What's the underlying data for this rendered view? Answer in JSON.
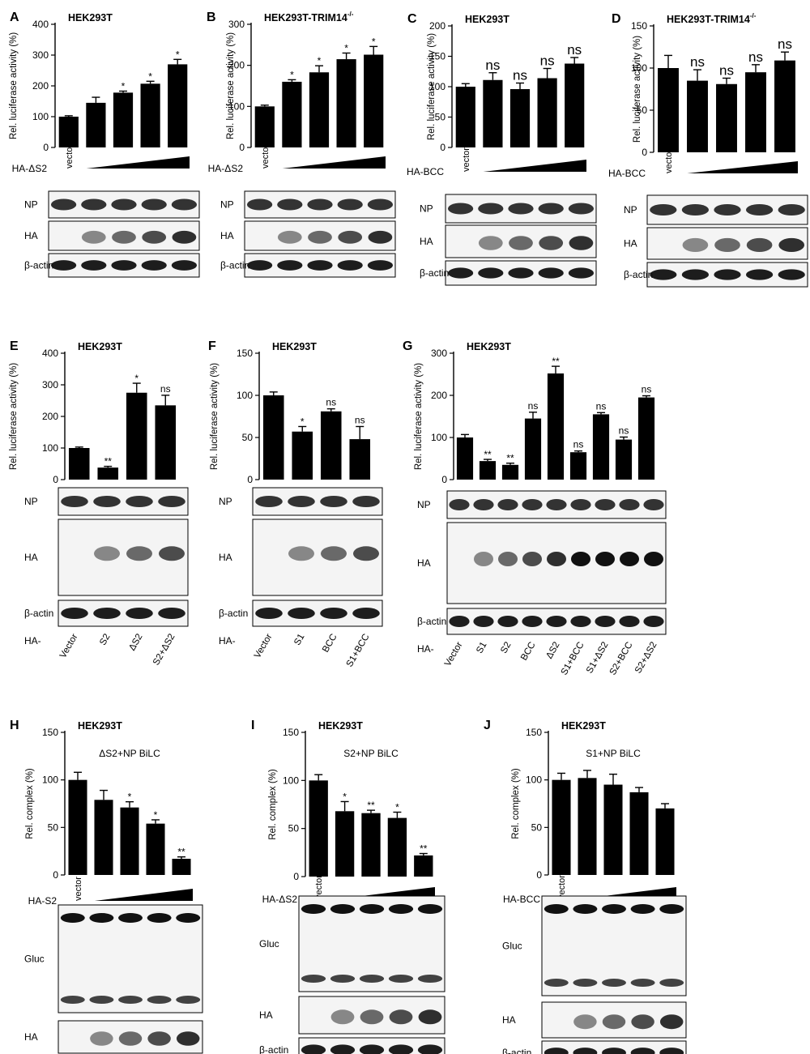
{
  "figure": {
    "panels": [
      {
        "id": "A",
        "cell_line": "HEK293T",
        "sup": "",
        "ylabel": "Rel. luciferase activity (%)",
        "ylim": [
          0,
          400
        ],
        "yticks": [
          0,
          100,
          200,
          300,
          400
        ],
        "chart_data": {
          "type": "bar",
          "categories": [
            "1",
            "2",
            "3",
            "4",
            "5"
          ],
          "values": [
            100,
            145,
            178,
            207,
            270
          ],
          "errors": [
            3,
            18,
            5,
            8,
            16
          ],
          "sig": [
            "",
            "",
            "*",
            "*",
            "*"
          ]
        },
        "gradient": {
          "label": "HA-ΔS2",
          "first": "vector"
        },
        "blots": [
          {
            "label": "NP",
            "arrow": "",
            "extra": ""
          },
          {
            "label": "HA",
            "arrow": "",
            "extra": ""
          },
          {
            "label": "β-actin",
            "arrow": "",
            "extra": ""
          }
        ],
        "bottom_prefix": "",
        "bottom_labels": []
      },
      {
        "id": "B",
        "cell_line": "HEK293T-TRIM14",
        "sup": "-/-",
        "ylabel": "Rel. luciferase activity (%)",
        "ylim": [
          0,
          300
        ],
        "yticks": [
          0,
          100,
          200,
          300
        ],
        "chart_data": {
          "type": "bar",
          "categories": [
            "1",
            "2",
            "3",
            "4",
            "5"
          ],
          "values": [
            100,
            160,
            183,
            215,
            226
          ],
          "errors": [
            3,
            5,
            16,
            15,
            20
          ],
          "sig": [
            "",
            "*",
            "*",
            "*",
            "*"
          ]
        },
        "gradient": {
          "label": "HA-ΔS2",
          "first": "vector"
        },
        "blots": [
          {
            "label": "NP",
            "arrow": "",
            "extra": ""
          },
          {
            "label": "HA",
            "arrow": "",
            "extra": ""
          },
          {
            "label": "β-actin",
            "arrow": "",
            "extra": ""
          }
        ],
        "bottom_prefix": "",
        "bottom_labels": []
      },
      {
        "id": "C",
        "cell_line": "HEK293T",
        "sup": "",
        "ylabel": "Rel. luciferase activity (%)",
        "ylim": [
          0,
          200
        ],
        "yticks": [
          0,
          50,
          100,
          150,
          200
        ],
        "chart_data": {
          "type": "bar",
          "categories": [
            "1",
            "2",
            "3",
            "4",
            "5"
          ],
          "values": [
            100,
            111,
            96,
            114,
            138
          ],
          "errors": [
            5,
            12,
            10,
            16,
            10
          ],
          "sig": [
            "",
            "ns",
            "ns",
            "ns",
            "ns"
          ]
        },
        "gradient": {
          "label": "HA-BCC",
          "first": "vector"
        },
        "blots": [
          {
            "label": "NP",
            "arrow": "",
            "extra": ""
          },
          {
            "label": "HA",
            "arrow": "",
            "extra": ""
          },
          {
            "label": "β-actin",
            "arrow": "",
            "extra": ""
          }
        ],
        "bottom_prefix": "",
        "bottom_labels": []
      },
      {
        "id": "D",
        "cell_line": "HEK293T-TRIM14",
        "sup": "-/-",
        "ylabel": "Rel. luciferase activity (%)",
        "ylim": [
          0,
          150
        ],
        "yticks": [
          0,
          50,
          100,
          150
        ],
        "chart_data": {
          "type": "bar",
          "categories": [
            "1",
            "2",
            "3",
            "4",
            "5"
          ],
          "values": [
            100,
            85,
            81,
            95,
            109
          ],
          "errors": [
            15,
            13,
            7,
            9,
            10
          ],
          "sig": [
            "",
            "ns",
            "ns",
            "ns",
            "ns"
          ]
        },
        "gradient": {
          "label": "HA-BCC",
          "first": "vector"
        },
        "blots": [
          {
            "label": "NP",
            "arrow": "",
            "extra": ""
          },
          {
            "label": "HA",
            "arrow": "",
            "extra": ""
          },
          {
            "label": "β-actin",
            "arrow": "",
            "extra": ""
          }
        ],
        "bottom_prefix": "",
        "bottom_labels": []
      },
      {
        "id": "E",
        "cell_line": "HEK293T",
        "sup": "",
        "ylabel": "Rel. luciferase activity (%)",
        "ylim": [
          0,
          400
        ],
        "yticks": [
          0,
          100,
          200,
          300,
          400
        ],
        "chart_data": {
          "type": "bar",
          "categories": [
            "Vector",
            "S2",
            "ΔS2",
            "S2+ΔS2"
          ],
          "values": [
            100,
            38,
            275,
            235
          ],
          "errors": [
            3,
            4,
            30,
            32
          ],
          "sig": [
            "",
            "**",
            "*",
            "ns"
          ]
        },
        "gradient": null,
        "blots": [
          {
            "label": "NP",
            "arrow": "",
            "extra": ""
          },
          {
            "label": "HA",
            "arrow": "",
            "extra": ""
          },
          {
            "label": "β-actin",
            "arrow": "",
            "extra": ""
          }
        ],
        "bottom_prefix": "HA-",
        "bottom_labels": [
          "Vector",
          "S2",
          "ΔS2",
          "S2+ΔS2"
        ]
      },
      {
        "id": "F",
        "cell_line": "HEK293T",
        "sup": "",
        "ylabel": "Rel. luciferase activity (%)",
        "ylim": [
          0,
          150
        ],
        "yticks": [
          0,
          50,
          100,
          150
        ],
        "chart_data": {
          "type": "bar",
          "categories": [
            "Vector",
            "S1",
            "BCC",
            "S1+BCC"
          ],
          "values": [
            100,
            57,
            81,
            48
          ],
          "errors": [
            4,
            6,
            3,
            15
          ],
          "sig": [
            "",
            "*",
            "ns",
            "ns"
          ]
        },
        "gradient": null,
        "blots": [
          {
            "label": "NP",
            "arrow": "",
            "extra": ""
          },
          {
            "label": "HA",
            "arrow": "",
            "extra": ""
          },
          {
            "label": "β-actin",
            "arrow": "",
            "extra": ""
          }
        ],
        "bottom_prefix": "HA-",
        "bottom_labels": [
          "Vector",
          "S1",
          "BCC",
          "S1+BCC"
        ]
      },
      {
        "id": "G",
        "cell_line": "HEK293T",
        "sup": "",
        "ylabel": "Rel. luciferase activity (%)",
        "ylim": [
          0,
          300
        ],
        "yticks": [
          0,
          100,
          200,
          300
        ],
        "chart_data": {
          "type": "bar",
          "categories": [
            "Vector",
            "S1",
            "S2",
            "BCC",
            "ΔS2",
            "S1+BCC",
            "S1+ΔS2",
            "S2+BCC",
            "S2+ΔS2"
          ],
          "values": [
            100,
            44,
            35,
            145,
            252,
            65,
            155,
            95,
            195
          ],
          "errors": [
            7,
            4,
            4,
            15,
            17,
            3,
            4,
            6,
            4
          ],
          "sig": [
            "",
            "**",
            "**",
            "ns",
            "**",
            "ns",
            "ns",
            "ns",
            "ns"
          ]
        },
        "gradient": null,
        "blots": [
          {
            "label": "NP",
            "arrow": "",
            "extra": ""
          },
          {
            "label": "HA",
            "arrow": "",
            "extra": ""
          },
          {
            "label": "β-actin",
            "arrow": "",
            "extra": ""
          }
        ],
        "bottom_prefix": "HA-",
        "bottom_labels": [
          "Vector",
          "S1",
          "S2",
          "BCC",
          "ΔS2",
          "S1+BCC",
          "S1+ΔS2",
          "S2+BCC",
          "S2+ΔS2"
        ]
      },
      {
        "id": "H",
        "cell_line": "HEK293T",
        "sup": "",
        "inner": "ΔS2+NP BiLC",
        "ylabel": "Rel. complex (%)",
        "ylim": [
          0,
          150
        ],
        "yticks": [
          0,
          50,
          100,
          150
        ],
        "chart_data": {
          "type": "bar",
          "categories": [
            "1",
            "2",
            "3",
            "4",
            "5"
          ],
          "values": [
            100,
            79,
            71,
            54,
            17
          ],
          "errors": [
            8,
            10,
            6,
            4,
            2
          ],
          "sig": [
            "",
            "",
            "*",
            "*",
            "**"
          ]
        },
        "gradient": {
          "label": "HA-S2",
          "first": "vector"
        },
        "blots": [
          {
            "label": "Gluc",
            "arrow": "NP",
            "extra": "ΔS2"
          },
          {
            "label": "HA",
            "arrow": "",
            "extra": ""
          },
          {
            "label": "β-actin",
            "arrow": "",
            "extra": ""
          }
        ],
        "bottom_prefix": "",
        "bottom_labels": []
      },
      {
        "id": "I",
        "cell_line": "HEK293T",
        "sup": "",
        "inner": "S2+NP BiLC",
        "ylabel": "Rel. complex (%)",
        "ylim": [
          0,
          150
        ],
        "yticks": [
          0,
          50,
          100,
          150
        ],
        "chart_data": {
          "type": "bar",
          "categories": [
            "1",
            "2",
            "3",
            "4",
            "5"
          ],
          "values": [
            100,
            68,
            66,
            61,
            22
          ],
          "errors": [
            6,
            10,
            3,
            6,
            2
          ],
          "sig": [
            "",
            "*",
            "**",
            "*",
            "**"
          ]
        },
        "gradient": {
          "label": "HA-ΔS2",
          "first": "vector"
        },
        "blots": [
          {
            "label": "Gluc",
            "arrow": "NP",
            "extra": "S2"
          },
          {
            "label": "HA",
            "arrow": "",
            "extra": ""
          },
          {
            "label": "β-actin",
            "arrow": "",
            "extra": ""
          }
        ],
        "bottom_prefix": "",
        "bottom_labels": []
      },
      {
        "id": "J",
        "cell_line": "HEK293T",
        "sup": "",
        "inner": "S1+NP BiLC",
        "ylabel": "Rel. complex (%)",
        "ylim": [
          0,
          150
        ],
        "yticks": [
          0,
          50,
          100,
          150
        ],
        "chart_data": {
          "type": "bar",
          "categories": [
            "1",
            "2",
            "3",
            "4",
            "5"
          ],
          "values": [
            100,
            102,
            95,
            87,
            70
          ],
          "errors": [
            7,
            8,
            11,
            5,
            5
          ],
          "sig": [
            "",
            "",
            "",
            "",
            ""
          ]
        },
        "gradient": {
          "label": "HA-BCC",
          "first": "vector"
        },
        "blots": [
          {
            "label": "Gluc",
            "arrow": "NP",
            "extra": "S1"
          },
          {
            "label": "HA",
            "arrow": "",
            "extra": ""
          },
          {
            "label": "β-actin",
            "arrow": "",
            "extra": ""
          }
        ],
        "bottom_prefix": "",
        "bottom_labels": []
      }
    ]
  }
}
